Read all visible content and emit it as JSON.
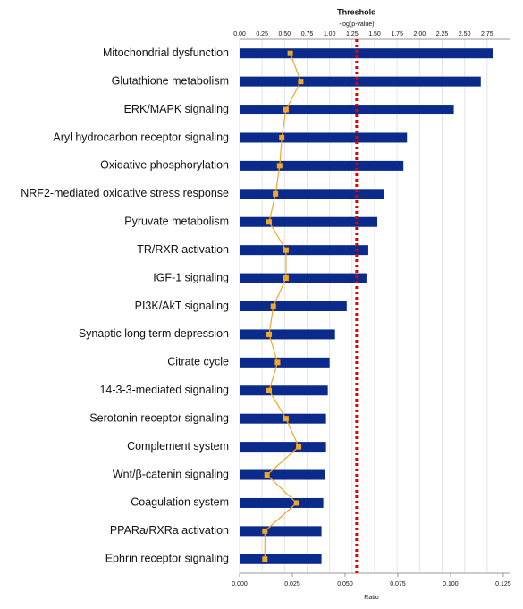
{
  "chart_data": {
    "type": "bar",
    "orientation": "horizontal",
    "categories": [
      "Mitochondrial dysfunction",
      "Glutathione metabolism",
      "ERK/MAPK signaling",
      "Aryl hydrocarbon receptor signaling",
      "Oxidative phosphorylation",
      "NRF2-mediated oxidative stress response",
      "Pyruvate metabolism",
      "TR/RXR activation",
      "IGF-1 signaling",
      "PI3K/AkT signaling",
      "Synaptic long term depression",
      "Citrate cycle",
      "14-3-3-mediated signaling",
      "Serotonin receptor signaling",
      "Complement system",
      "Wnt/β-catenin signaling",
      "Coagulation system",
      "PPARa/RXRa activation",
      "Ephrin receptor signaling"
    ],
    "series": [
      {
        "name": "-log(p-value)",
        "color": "#0a2a8c",
        "values": [
          2.82,
          2.68,
          2.38,
          1.86,
          1.82,
          1.6,
          1.53,
          1.43,
          1.41,
          1.19,
          1.06,
          1.0,
          0.98,
          0.96,
          0.96,
          0.95,
          0.93,
          0.91,
          0.91
        ]
      },
      {
        "name": "Ratio",
        "color": "#f5a623",
        "axis": "x2",
        "values": [
          0.024,
          0.029,
          0.022,
          0.02,
          0.019,
          0.017,
          0.014,
          0.022,
          0.022,
          0.016,
          0.014,
          0.018,
          0.014,
          0.022,
          0.028,
          0.013,
          0.027,
          0.012,
          0.012
        ]
      }
    ],
    "xlim": [
      0,
      3.0
    ],
    "xticks": [
      {
        "value": 0,
        "label": "0.00"
      },
      {
        "value": 0.25,
        "label": "0.25"
      },
      {
        "value": 0.5,
        "label": "0.50"
      },
      {
        "value": 0.75,
        "label": "0.75"
      },
      {
        "value": 1,
        "label": "1.00"
      },
      {
        "value": 1.25,
        "label": "1.25"
      },
      {
        "value": 1.5,
        "label": "1.50"
      },
      {
        "value": 1.75,
        "label": "1.75"
      },
      {
        "value": 2,
        "label": "2.00"
      },
      {
        "value": 2.25,
        "label": "2.25"
      },
      {
        "value": 2.5,
        "label": "2.50"
      },
      {
        "value": 2.75,
        "label": "2.75"
      }
    ],
    "x2lim": [
      0,
      0.128
    ],
    "x2ticks": [
      {
        "value": 0,
        "label": "0.000"
      },
      {
        "value": 0.025,
        "label": "0.025"
      },
      {
        "value": 0.05,
        "label": "0.050"
      },
      {
        "value": 0.075,
        "label": "0.075"
      },
      {
        "value": 0.1,
        "label": "0.100"
      },
      {
        "value": 0.125,
        "label": "0.125"
      }
    ],
    "x_label": "-log(p-value)",
    "x2_label": "Ratio",
    "threshold": {
      "value": 1.3,
      "label": "Threshold"
    },
    "grid": true
  }
}
